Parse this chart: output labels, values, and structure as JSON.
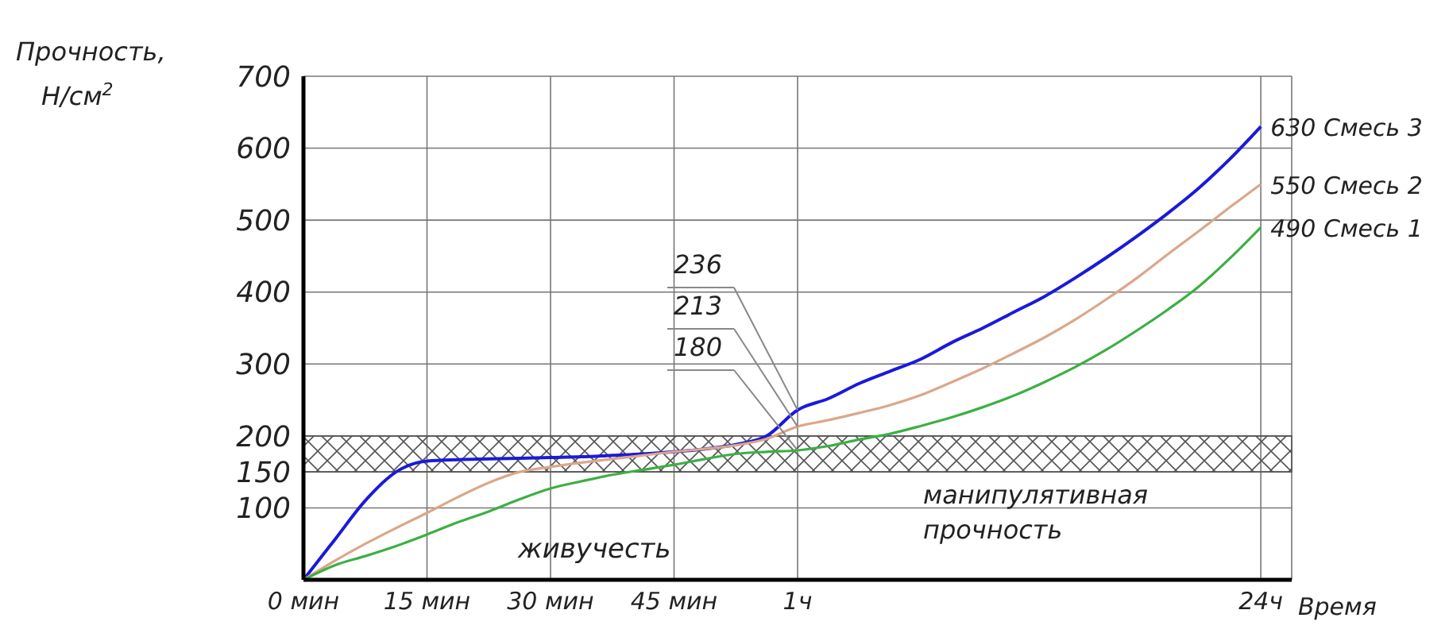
{
  "chart_data": {
    "type": "line",
    "ylabel": "Прочность, Н/см$^{2}$",
    "xlabel": "Время",
    "categories": [
      "0 мин",
      null,
      null,
      null,
      "15 мин",
      null,
      null,
      null,
      "30 мин",
      null,
      null,
      null,
      "45 мин",
      null,
      null,
      null,
      "1ч",
      null,
      null,
      null,
      null,
      null,
      null,
      null,
      null,
      null,
      null,
      null,
      null,
      null,
      null,
      "24ч",
      null
    ],
    "ylim": [
      0,
      700
    ],
    "yticks": [
      100,
      150,
      200,
      300,
      400,
      500,
      600,
      700
    ],
    "grid": true,
    "legend": false,
    "marker": "none",
    "line_style": "solid",
    "series": [
      {
        "name": "Смесь 3",
        "color": "#1a1adb",
        "values": [
          0,
          55,
          110,
          150,
          165,
          167,
          168,
          169,
          170,
          171,
          173,
          175,
          178,
          182,
          188,
          200,
          236,
          252,
          273,
          290,
          307,
          330,
          350,
          372,
          394,
          420,
          448,
          478,
          510,
          545,
          585,
          630,
          null
        ],
        "value_labels": [
          null,
          null,
          null,
          null,
          null,
          null,
          null,
          null,
          null,
          null,
          null,
          null,
          null,
          null,
          null,
          null,
          "236",
          null,
          null,
          null,
          null,
          null,
          null,
          null,
          null,
          null,
          null,
          null,
          null,
          null,
          null,
          "630",
          null
        ]
      },
      {
        "name": "Смесь 2",
        "color": "#dba78a",
        "values": [
          0,
          26,
          50,
          72,
          93,
          115,
          135,
          150,
          157,
          163,
          168,
          173,
          178,
          182,
          187,
          196,
          213,
          222,
          232,
          243,
          257,
          275,
          294,
          315,
          337,
          362,
          390,
          420,
          453,
          485,
          518,
          550,
          null
        ],
        "value_labels": [
          null,
          null,
          null,
          null,
          null,
          null,
          null,
          null,
          null,
          null,
          null,
          null,
          null,
          null,
          null,
          null,
          "213",
          null,
          null,
          null,
          null,
          null,
          null,
          null,
          null,
          null,
          null,
          null,
          null,
          null,
          null,
          "550",
          null
        ]
      },
      {
        "name": "Смесь 1",
        "color": "#3cb043",
        "values": [
          0,
          20,
          33,
          47,
          63,
          80,
          95,
          112,
          127,
          137,
          146,
          153,
          160,
          168,
          175,
          178,
          180,
          186,
          195,
          203,
          214,
          226,
          240,
          256,
          275,
          296,
          320,
          347,
          376,
          408,
          447,
          490,
          null
        ],
        "value_labels": [
          null,
          null,
          null,
          null,
          null,
          null,
          null,
          null,
          null,
          null,
          null,
          null,
          null,
          null,
          null,
          null,
          "180",
          null,
          null,
          null,
          null,
          null,
          null,
          null,
          null,
          null,
          null,
          null,
          null,
          null,
          null,
          "490",
          null
        ]
      }
    ],
    "bands": [
      {
        "axis": "y",
        "from": 150,
        "to": 200,
        "label": "манипулятивная прочность",
        "color": "#555555"
      }
    ],
    "annotations": [
      "живучесть"
    ]
  }
}
